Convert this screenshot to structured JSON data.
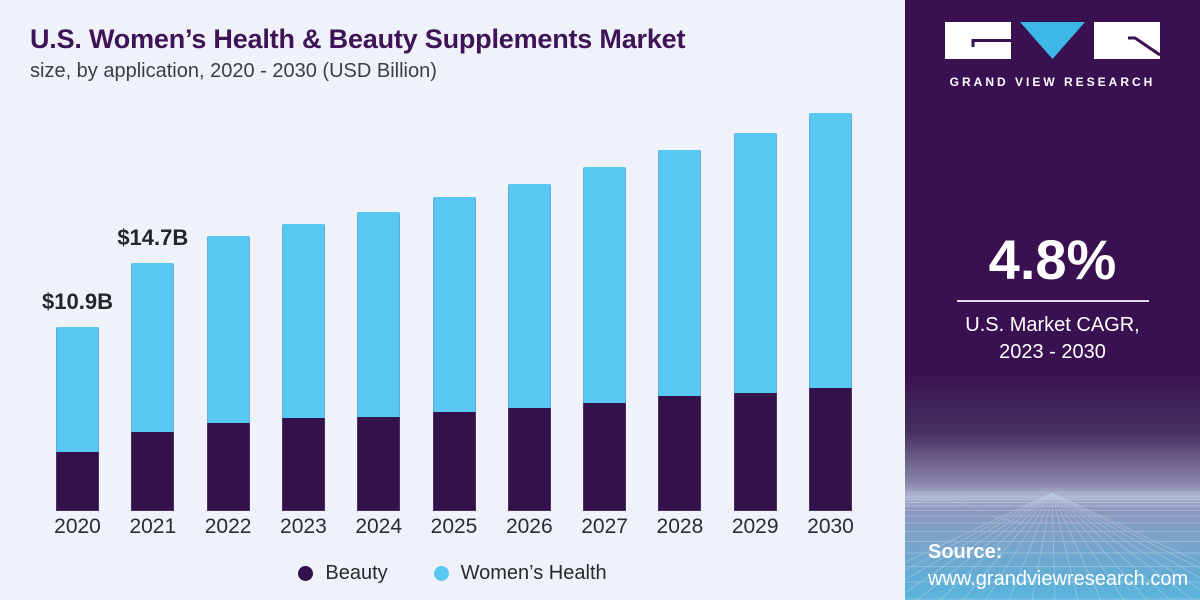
{
  "chart": {
    "title": "U.S. Women’s Health & Beauty Supplements Market",
    "subtitle": "size, by application, 2020 - 2030 (USD Billion)"
  },
  "chart_data": {
    "type": "bar",
    "stacked": true,
    "categories": [
      "2020",
      "2021",
      "2022",
      "2023",
      "2024",
      "2025",
      "2026",
      "2027",
      "2028",
      "2029",
      "2030"
    ],
    "series": [
      {
        "name": "Beauty",
        "color": "#33124b",
        "values": [
          3.5,
          4.7,
          5.2,
          5.5,
          5.6,
          5.9,
          6.1,
          6.4,
          6.8,
          7.0,
          7.3
        ]
      },
      {
        "name": "Women’s Health",
        "color": "#58c8f2",
        "values": [
          7.4,
          10.0,
          11.1,
          11.5,
          12.1,
          12.7,
          13.3,
          14.0,
          14.6,
          15.4,
          16.3
        ]
      }
    ],
    "totals": [
      10.9,
      14.7,
      16.3,
      17.0,
      17.7,
      18.6,
      19.4,
      20.4,
      21.4,
      22.4,
      23.6
    ],
    "annotations": [
      {
        "category": "2020",
        "text": "$10.9B"
      },
      {
        "category": "2021",
        "text": "$14.7B"
      }
    ],
    "unit": "USD Billion",
    "legend_position": "bottom",
    "grid": false,
    "ylim": [
      0,
      25
    ]
  },
  "brand": {
    "name": "GRAND VIEW RESEARCH",
    "cagr_value": "4.8%",
    "cagr_label_line1": "U.S. Market CAGR,",
    "cagr_label_line2": "2023 - 2030",
    "source_label": "Source:",
    "source_url": "www.grandviewresearch.com"
  },
  "colors": {
    "chart_background": "#eff3f9",
    "panel_background": "#3a1150",
    "beauty_bar": "#33124b",
    "womens_health_bar": "#58c8f2",
    "logo_triangle": "#3db7e8",
    "title_text": "#3f1357",
    "panel_text": "#ffffff"
  }
}
